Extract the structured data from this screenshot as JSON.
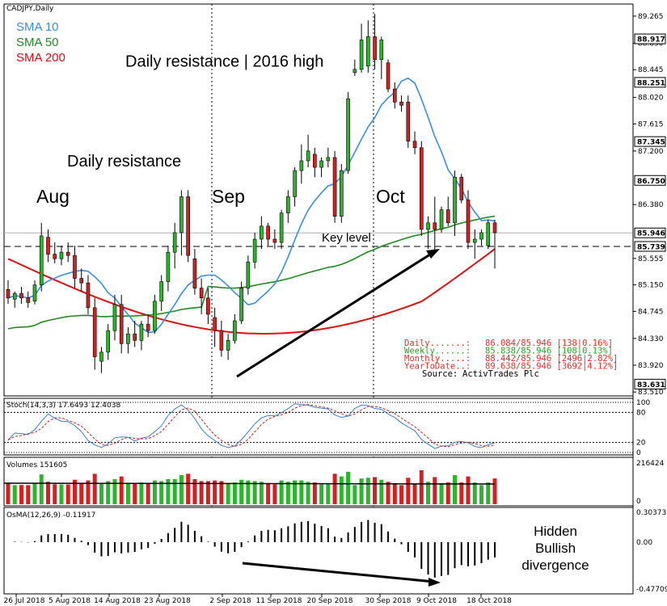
{
  "chart_data": {
    "type": "candlestick",
    "symbol_label": "CADJPY,Daily",
    "legend": [
      {
        "label": "SMA 10",
        "color": "#3a8fe0"
      },
      {
        "label": "SMA 50",
        "color": "#1f8a1f"
      },
      {
        "label": "SMA 200",
        "color": "#e01010"
      }
    ],
    "price_axis": {
      "ticks": [
        "89.265",
        "88.850",
        "88.445",
        "88.020",
        "87.615",
        "87.200",
        "86.380",
        "85.555",
        "85.150",
        "84.745",
        "84.330",
        "83.920",
        "83.510"
      ],
      "highlight_levels": [
        {
          "label": "88.917",
          "value": 88.917
        },
        {
          "label": "88.251",
          "value": 88.251
        },
        {
          "label": "87.345",
          "value": 87.345
        },
        {
          "label": "86.750",
          "value": 86.75
        },
        {
          "label": "85.946",
          "value": 85.946
        },
        {
          "label": "85.739",
          "value": 85.739
        },
        {
          "label": "83.631",
          "value": 83.631
        }
      ],
      "range": [
        83.45,
        89.45
      ]
    },
    "zones": [
      {
        "label": "Daily resistance | 2016 high",
        "from": 88.251,
        "to": 88.917,
        "color": "#ff8a8a"
      },
      {
        "label": "Daily resistance",
        "from": 86.75,
        "to": 87.345,
        "color": "#ff8a8a"
      },
      {
        "label": "",
        "from": 83.45,
        "to": 83.631,
        "color": "#b8ecb0"
      }
    ],
    "key_level": {
      "label": "Key level",
      "value": 85.739
    },
    "month_labels": [
      "Aug",
      "Sep",
      "Oct"
    ],
    "date_ticks": [
      "26 Jul 2018",
      "5 Aug 2018",
      "14 Aug 2018",
      "23 Aug 2018",
      "2 Sep 2018",
      "11 Sep 2018",
      "20 Sep 2018",
      "30 Sep 2018",
      "9 Oct 2018",
      "18 Oct 2018"
    ],
    "candles": [
      {
        "o": 85.08,
        "h": 85.22,
        "l": 84.86,
        "c": 84.95
      },
      {
        "o": 84.93,
        "h": 85.05,
        "l": 84.8,
        "c": 85.02
      },
      {
        "o": 85.02,
        "h": 85.12,
        "l": 84.86,
        "c": 84.95
      },
      {
        "o": 84.95,
        "h": 85.05,
        "l": 84.8,
        "c": 84.88
      },
      {
        "o": 84.9,
        "h": 85.22,
        "l": 84.85,
        "c": 85.15
      },
      {
        "o": 85.15,
        "h": 86.1,
        "l": 85.05,
        "c": 85.9
      },
      {
        "o": 85.88,
        "h": 86.0,
        "l": 85.5,
        "c": 85.62
      },
      {
        "o": 85.62,
        "h": 85.8,
        "l": 85.48,
        "c": 85.55
      },
      {
        "o": 85.55,
        "h": 85.75,
        "l": 85.45,
        "c": 85.65
      },
      {
        "o": 85.65,
        "h": 85.8,
        "l": 85.5,
        "c": 85.6
      },
      {
        "o": 85.6,
        "h": 85.75,
        "l": 85.1,
        "c": 85.25
      },
      {
        "o": 85.25,
        "h": 85.4,
        "l": 85.05,
        "c": 85.18
      },
      {
        "o": 85.18,
        "h": 85.3,
        "l": 84.7,
        "c": 84.8
      },
      {
        "o": 84.8,
        "h": 84.95,
        "l": 83.85,
        "c": 84.05
      },
      {
        "o": 83.98,
        "h": 84.2,
        "l": 83.8,
        "c": 84.12
      },
      {
        "o": 84.12,
        "h": 84.55,
        "l": 84.0,
        "c": 84.45
      },
      {
        "o": 84.45,
        "h": 85.0,
        "l": 84.3,
        "c": 84.85
      },
      {
        "o": 84.85,
        "h": 85.0,
        "l": 84.1,
        "c": 84.25
      },
      {
        "o": 84.25,
        "h": 84.5,
        "l": 84.1,
        "c": 84.4
      },
      {
        "o": 84.4,
        "h": 84.6,
        "l": 84.2,
        "c": 84.3
      },
      {
        "o": 84.3,
        "h": 84.6,
        "l": 84.15,
        "c": 84.55
      },
      {
        "o": 84.55,
        "h": 84.7,
        "l": 84.35,
        "c": 84.45
      },
      {
        "o": 84.45,
        "h": 85.0,
        "l": 84.4,
        "c": 84.9
      },
      {
        "o": 84.9,
        "h": 85.3,
        "l": 84.75,
        "c": 85.2
      },
      {
        "o": 85.2,
        "h": 85.75,
        "l": 85.05,
        "c": 85.65
      },
      {
        "o": 85.65,
        "h": 86.1,
        "l": 85.4,
        "c": 85.95
      },
      {
        "o": 85.95,
        "h": 86.6,
        "l": 85.6,
        "c": 86.5
      },
      {
        "o": 86.5,
        "h": 86.6,
        "l": 85.5,
        "c": 85.6
      },
      {
        "o": 85.55,
        "h": 85.7,
        "l": 85.0,
        "c": 85.1
      },
      {
        "o": 85.1,
        "h": 85.25,
        "l": 84.7,
        "c": 84.95
      },
      {
        "o": 84.95,
        "h": 85.1,
        "l": 84.55,
        "c": 84.7
      },
      {
        "o": 84.65,
        "h": 84.8,
        "l": 84.2,
        "c": 84.45
      },
      {
        "o": 84.45,
        "h": 84.6,
        "l": 84.05,
        "c": 84.15
      },
      {
        "o": 84.15,
        "h": 84.4,
        "l": 84.0,
        "c": 84.3
      },
      {
        "o": 84.3,
        "h": 84.7,
        "l": 84.25,
        "c": 84.6
      },
      {
        "o": 84.6,
        "h": 85.2,
        "l": 84.55,
        "c": 85.1
      },
      {
        "o": 85.1,
        "h": 85.6,
        "l": 85.0,
        "c": 85.5
      },
      {
        "o": 85.5,
        "h": 85.95,
        "l": 85.4,
        "c": 85.85
      },
      {
        "o": 85.85,
        "h": 86.2,
        "l": 85.7,
        "c": 86.05
      },
      {
        "o": 86.05,
        "h": 86.1,
        "l": 85.75,
        "c": 85.85
      },
      {
        "o": 85.85,
        "h": 86.0,
        "l": 85.7,
        "c": 85.8
      },
      {
        "o": 85.8,
        "h": 86.3,
        "l": 85.7,
        "c": 86.25
      },
      {
        "o": 86.25,
        "h": 86.6,
        "l": 86.1,
        "c": 86.5
      },
      {
        "o": 86.5,
        "h": 86.95,
        "l": 86.35,
        "c": 86.9
      },
      {
        "o": 86.9,
        "h": 87.3,
        "l": 86.7,
        "c": 87.05
      },
      {
        "o": 87.05,
        "h": 87.45,
        "l": 86.95,
        "c": 87.2
      },
      {
        "o": 87.15,
        "h": 87.25,
        "l": 86.8,
        "c": 86.95
      },
      {
        "o": 86.95,
        "h": 87.1,
        "l": 86.8,
        "c": 87.05
      },
      {
        "o": 87.05,
        "h": 87.25,
        "l": 86.95,
        "c": 87.1
      },
      {
        "o": 87.1,
        "h": 87.2,
        "l": 86.1,
        "c": 86.2
      },
      {
        "o": 86.2,
        "h": 87.0,
        "l": 86.1,
        "c": 86.9
      },
      {
        "o": 86.9,
        "h": 88.1,
        "l": 86.85,
        "c": 88.0
      },
      {
        "o": 88.4,
        "h": 88.6,
        "l": 88.35,
        "c": 88.45
      },
      {
        "o": 88.45,
        "h": 89.15,
        "l": 88.4,
        "c": 88.9
      },
      {
        "o": 88.5,
        "h": 89.2,
        "l": 88.4,
        "c": 88.95
      },
      {
        "o": 88.95,
        "h": 89.3,
        "l": 88.45,
        "c": 88.6
      },
      {
        "o": 88.6,
        "h": 88.95,
        "l": 88.3,
        "c": 88.9
      },
      {
        "o": 88.55,
        "h": 88.6,
        "l": 88.1,
        "c": 88.15
      },
      {
        "o": 88.15,
        "h": 88.25,
        "l": 87.85,
        "c": 87.95
      },
      {
        "o": 87.95,
        "h": 88.05,
        "l": 87.8,
        "c": 87.9
      },
      {
        "o": 87.95,
        "h": 88.05,
        "l": 87.25,
        "c": 87.35
      },
      {
        "o": 87.35,
        "h": 87.5,
        "l": 87.15,
        "c": 87.25
      },
      {
        "o": 87.25,
        "h": 87.35,
        "l": 85.9,
        "c": 86.0
      },
      {
        "o": 86.0,
        "h": 86.2,
        "l": 85.7,
        "c": 86.1
      },
      {
        "o": 86.1,
        "h": 86.5,
        "l": 85.65,
        "c": 86.0
      },
      {
        "o": 86.0,
        "h": 86.35,
        "l": 85.95,
        "c": 86.3
      },
      {
        "o": 86.3,
        "h": 86.5,
        "l": 86.05,
        "c": 86.1
      },
      {
        "o": 86.1,
        "h": 86.9,
        "l": 85.9,
        "c": 86.8
      },
      {
        "o": 86.8,
        "h": 86.85,
        "l": 86.4,
        "c": 86.45
      },
      {
        "o": 86.45,
        "h": 86.6,
        "l": 85.7,
        "c": 85.8
      },
      {
        "o": 85.8,
        "h": 86.0,
        "l": 85.55,
        "c": 85.85
      },
      {
        "o": 85.85,
        "h": 86.0,
        "l": 85.75,
        "c": 85.95
      },
      {
        "o": 85.75,
        "h": 86.15,
        "l": 85.7,
        "c": 86.1
      },
      {
        "o": 86.1,
        "h": 86.15,
        "l": 85.4,
        "c": 85.95
      }
    ],
    "stoch": {
      "label": "Stoch(14,3,3) 17.6493 12.4038",
      "levels": [
        "100",
        "80",
        "20",
        "0"
      ]
    },
    "volume": {
      "label": "Volumes 151605",
      "levels": [
        "216424",
        "0"
      ]
    },
    "osma": {
      "label": "OsMA(12,26,9) -0.11917",
      "levels": [
        "0.30373",
        "0.00",
        "-0.47709"
      ]
    },
    "stats": [
      {
        "label": "Daily.......:",
        "value": "86.084/85.946 [138|0.16%]",
        "color": "#e0302a"
      },
      {
        "label": "Weekly......:",
        "value": "85.838/85.946 [108|0.13%]",
        "color": "#2aa02a"
      },
      {
        "label": "Monthly.....:",
        "value": "88.442/85.946 [2496|2.82%]",
        "color": "#e0302a"
      },
      {
        "label": "YearToDate..:",
        "value": "89.638/85.946 [3692|4.12%]",
        "color": "#e0302a"
      },
      {
        "label": "Source:",
        "value": "ActivTrades Plc",
        "color": "#000000"
      }
    ],
    "annotation": {
      "line1": "Hidden",
      "line2": "Bullish",
      "line3": "divergence"
    }
  }
}
